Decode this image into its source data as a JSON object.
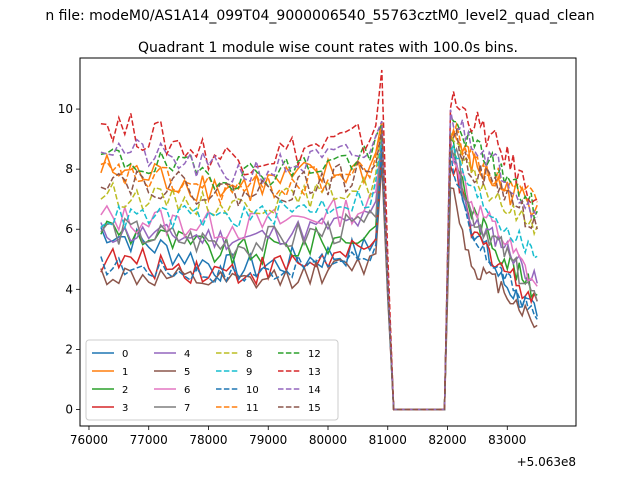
{
  "figure": {
    "suptitle": "n file: modeM0/AS1A14_099T04_9000006540_55763cztM0_level2_quad_clean",
    "title": "Quadrant 1 module wise count rates with 100.0s bins.",
    "offset_label": "+5.063e8"
  },
  "chart_data": {
    "type": "line",
    "title": "Quadrant 1 module wise count rates with 100.0s bins.",
    "xlabel": "",
    "ylabel": "",
    "x_offset": 506300000,
    "xlim": [
      75850,
      84150
    ],
    "ylim": [
      -0.55,
      11.7
    ],
    "xticks": [
      76000,
      77000,
      78000,
      79000,
      80000,
      81000,
      82000,
      83000
    ],
    "yticks": [
      0,
      2,
      4,
      6,
      8,
      10
    ],
    "legend": {
      "placement": "lower-left",
      "columns": 4
    },
    "gap": [
      81100,
      81950
    ],
    "x_start": 76200,
    "x_step": 100,
    "series": [
      {
        "name": "0",
        "color": "#1f77b4",
        "dash": "solid",
        "seg1_start": 6.0,
        "seg1_trend": 4.7,
        "seg1_amp": 0.5,
        "peak": 8.8,
        "seg2": [
          8.7,
          6.2,
          4.3,
          3.1
        ]
      },
      {
        "name": "1",
        "color": "#ff7f0e",
        "dash": "solid",
        "seg1_start": 8.0,
        "seg1_trend": 7.4,
        "seg1_amp": 0.6,
        "peak": 9.6,
        "seg2": [
          9.3,
          8.2,
          7.4,
          6.8
        ]
      },
      {
        "name": "2",
        "color": "#2ca02c",
        "dash": "solid",
        "seg1_start": 6.1,
        "seg1_trend": 5.2,
        "seg1_amp": 0.5,
        "peak": 9.0,
        "seg2": [
          8.9,
          6.6,
          5.2,
          3.8
        ]
      },
      {
        "name": "3",
        "color": "#d62728",
        "dash": "solid",
        "seg1_start": 5.0,
        "seg1_trend": 4.6,
        "seg1_amp": 0.5,
        "peak": 8.6,
        "seg2": [
          8.4,
          5.9,
          4.8,
          3.6
        ]
      },
      {
        "name": "4",
        "color": "#9467bd",
        "dash": "solid",
        "seg1_start": 5.9,
        "seg1_trend": 5.7,
        "seg1_amp": 0.4,
        "peak": 8.9,
        "seg2": [
          8.8,
          6.2,
          5.6,
          4.2
        ]
      },
      {
        "name": "5",
        "color": "#8c564b",
        "dash": "solid",
        "seg1_start": 4.5,
        "seg1_trend": 4.2,
        "seg1_amp": 0.4,
        "peak": 8.2,
        "seg2": [
          7.6,
          4.8,
          4.1,
          2.8
        ]
      },
      {
        "name": "6",
        "color": "#e377c2",
        "dash": "solid",
        "seg1_start": 6.4,
        "seg1_trend": 6.1,
        "seg1_amp": 0.5,
        "peak": 9.0,
        "seg2": [
          8.9,
          6.9,
          5.8,
          4.1
        ]
      },
      {
        "name": "7",
        "color": "#7f7f7f",
        "dash": "solid",
        "seg1_start": 6.0,
        "seg1_trend": 5.5,
        "seg1_amp": 0.5,
        "peak": 9.2,
        "seg2": [
          9.0,
          6.5,
          5.4,
          3.6
        ]
      },
      {
        "name": "8",
        "color": "#bcbd22",
        "dash": "dashed",
        "seg1_start": 7.2,
        "seg1_trend": 6.8,
        "seg1_amp": 0.4,
        "peak": 9.4,
        "seg2": [
          9.1,
          7.8,
          6.8,
          6.1
        ]
      },
      {
        "name": "9",
        "color": "#17becf",
        "dash": "dashed",
        "seg1_start": 6.4,
        "seg1_trend": 6.4,
        "seg1_amp": 0.4,
        "peak": 9.0,
        "seg2": [
          8.8,
          7.3,
          6.2,
          5.1
        ]
      },
      {
        "name": "10",
        "color": "#1f77b4",
        "dash": "dashed",
        "seg1_start": 4.8,
        "seg1_trend": 4.5,
        "seg1_amp": 0.35,
        "peak": 8.7,
        "seg2": [
          8.5,
          5.6,
          4.6,
          3.0
        ]
      },
      {
        "name": "11",
        "color": "#ff7f0e",
        "dash": "dashed",
        "seg1_start": 7.9,
        "seg1_trend": 7.3,
        "seg1_amp": 0.5,
        "peak": 9.5,
        "seg2": [
          9.4,
          8.4,
          7.6,
          6.9
        ]
      },
      {
        "name": "12",
        "color": "#2ca02c",
        "dash": "dashed",
        "seg1_start": 8.4,
        "seg1_trend": 7.8,
        "seg1_amp": 0.5,
        "peak": 9.5,
        "seg2": [
          9.6,
          8.9,
          7.9,
          6.6
        ]
      },
      {
        "name": "13",
        "color": "#d62728",
        "dash": "dashed",
        "seg1_start": 9.6,
        "seg1_trend": 8.4,
        "seg1_amp": 0.6,
        "peak": 11.3,
        "seg2": [
          10.3,
          9.7,
          8.6,
          7.0
        ]
      },
      {
        "name": "14",
        "color": "#9467bd",
        "dash": "dashed",
        "seg1_start": 8.8,
        "seg1_trend": 7.9,
        "seg1_amp": 0.5,
        "peak": 9.6,
        "seg2": [
          9.8,
          9.0,
          8.0,
          6.4
        ]
      },
      {
        "name": "15",
        "color": "#8c564b",
        "dash": "dashed",
        "seg1_start": 7.8,
        "seg1_trend": 7.2,
        "seg1_amp": 0.5,
        "peak": 9.3,
        "seg2": [
          9.3,
          8.0,
          7.4,
          6.0
        ]
      }
    ]
  }
}
